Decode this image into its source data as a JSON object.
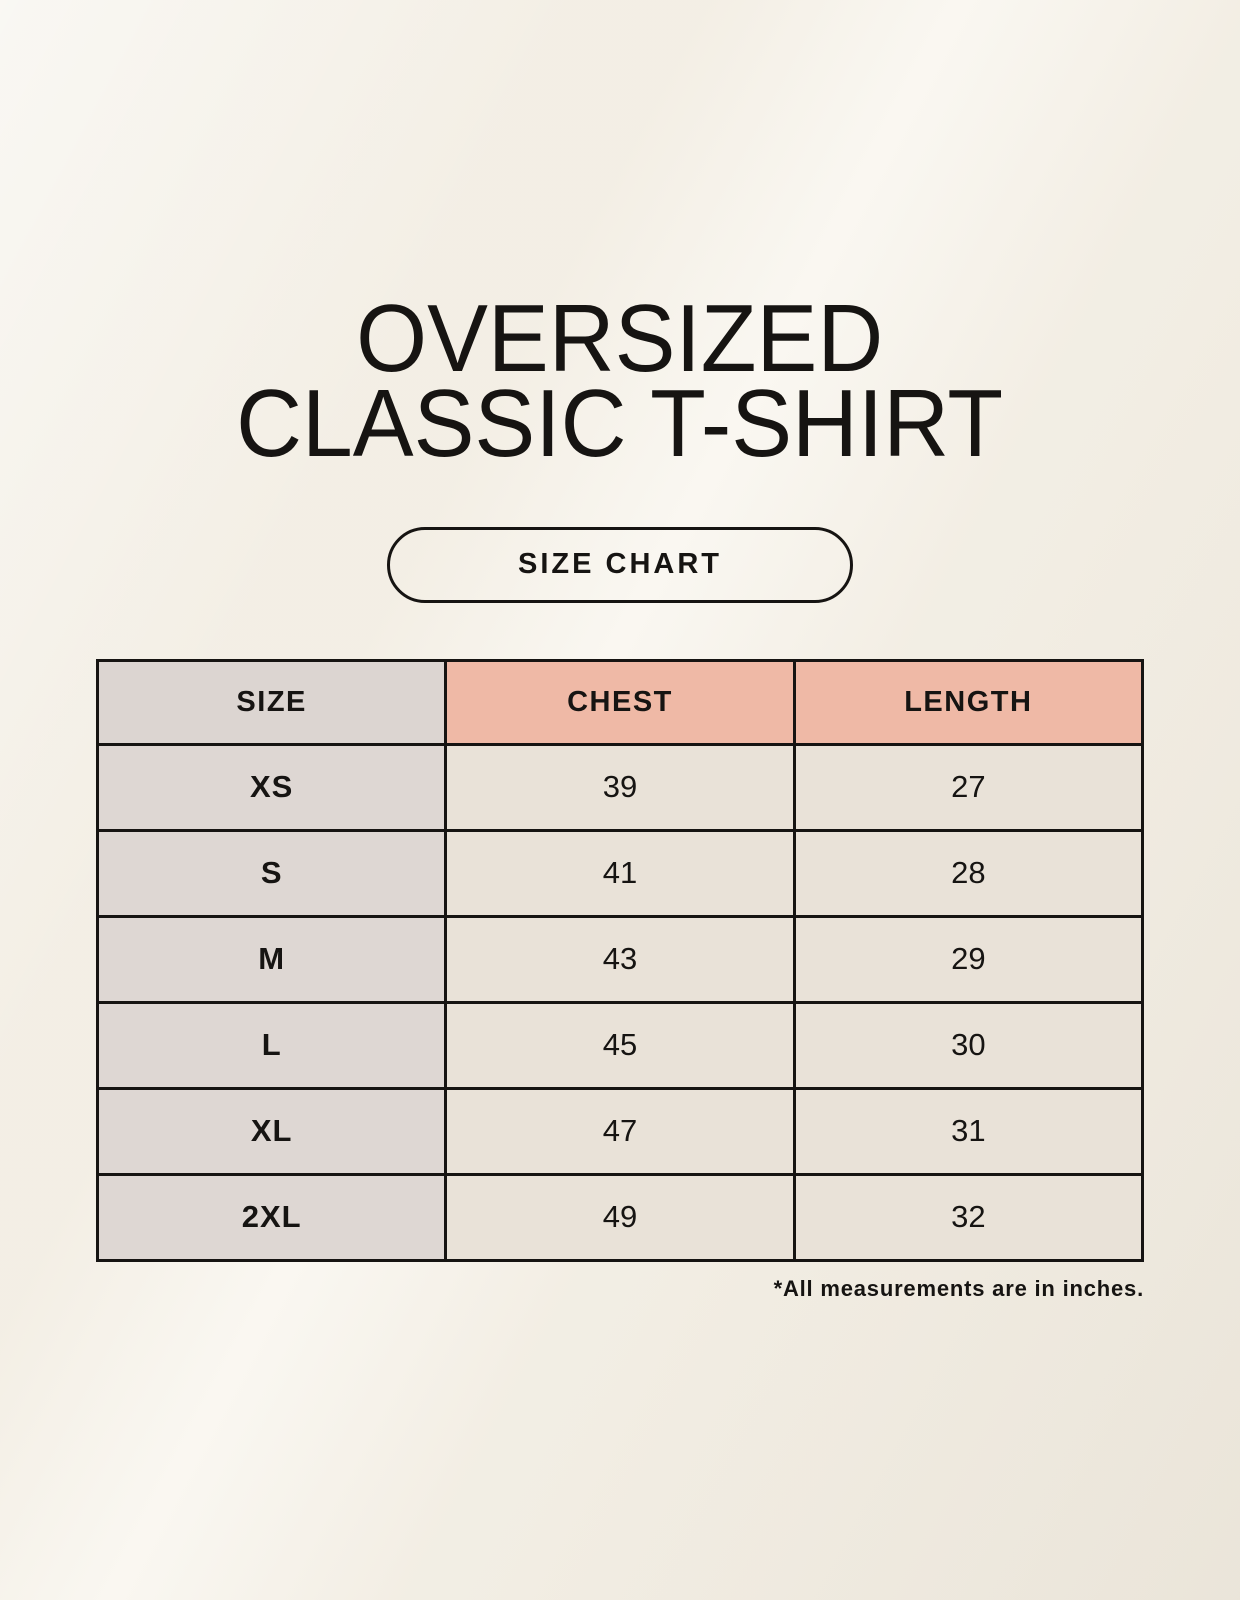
{
  "header": {
    "title_line1": "OVERSIZED",
    "title_line2": "CLASSIC T-SHIRT",
    "badge_label": "SIZE CHART"
  },
  "footnote": "*All measurements are in inches.",
  "colors": {
    "page_bg": "#f7f3ea",
    "border": "#161412",
    "text": "#161412",
    "size_header_bg": "#dcd5d1",
    "accent_header_bg": "#efb9a6",
    "size_col_bg": "#ded7d3",
    "value_col_bg": "#e9e2d8"
  },
  "chart_data": {
    "type": "table",
    "title": "OVERSIZED CLASSIC T-SHIRT",
    "subtitle": "SIZE CHART",
    "units": "inches",
    "columns": [
      "SIZE",
      "CHEST",
      "LENGTH"
    ],
    "rows": [
      {
        "size": "XS",
        "chest": "39",
        "length": "27"
      },
      {
        "size": "S",
        "chest": "41",
        "length": "28"
      },
      {
        "size": "M",
        "chest": "43",
        "length": "29"
      },
      {
        "size": "L",
        "chest": "45",
        "length": "30"
      },
      {
        "size": "XL",
        "chest": "47",
        "length": "31"
      },
      {
        "size": "2XL",
        "chest": "49",
        "length": "32"
      }
    ]
  }
}
